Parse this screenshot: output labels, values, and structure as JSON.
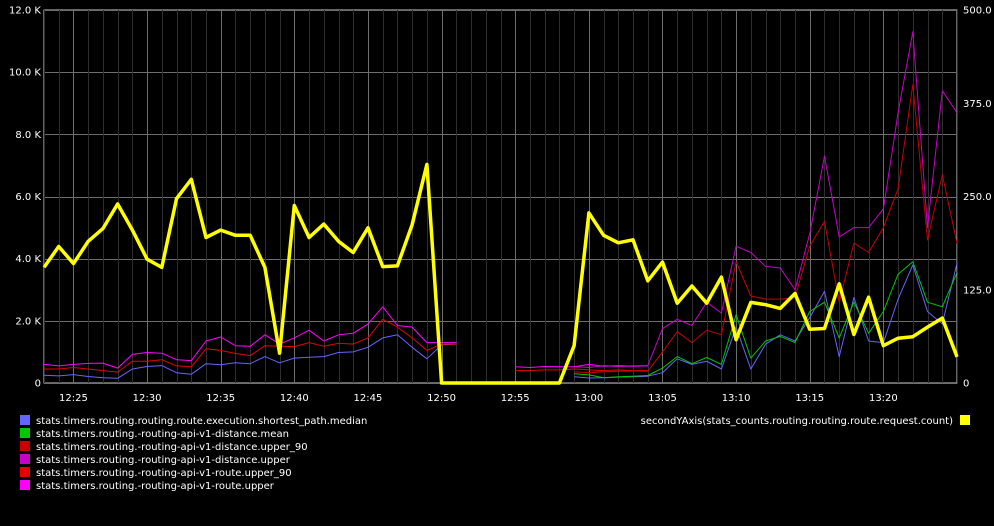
{
  "chart_data": {
    "type": "line",
    "title": "",
    "xlabel": "",
    "ylabel": "",
    "x_ticks": [
      "12:25",
      "12:30",
      "12:35",
      "12:40",
      "12:45",
      "12:50",
      "12:55",
      "13:00",
      "13:05",
      "13:10",
      "13:15",
      "13:20"
    ],
    "x_tick_minutes": [
      2,
      7,
      12,
      17,
      22,
      27,
      32,
      37,
      42,
      47,
      52,
      57
    ],
    "x_range_minutes": [
      0,
      62
    ],
    "y_left": {
      "ticks": [
        "0",
        "2.0 K",
        "4.0 K",
        "6.0 K",
        "8.0 K",
        "10.0 K",
        "12.0 K"
      ],
      "tick_values": [
        0,
        2000,
        4000,
        6000,
        8000,
        10000,
        12000
      ],
      "range": [
        0,
        12000
      ]
    },
    "y_right": {
      "ticks": [
        "0",
        "125.0",
        "250.0",
        "375.0",
        "500.0"
      ],
      "tick_values": [
        0,
        125,
        250,
        375,
        500
      ],
      "range": [
        0,
        500
      ]
    },
    "grid": true,
    "legend_placement": "bottom",
    "series": [
      {
        "name": "stats.timers.routing.routing.route.execution.shortest_path.median",
        "color": "#6464ff",
        "axis": "left",
        "width": 1,
        "points": [
          [
            0,
            250
          ],
          [
            1,
            230
          ],
          [
            2,
            270
          ],
          [
            3,
            210
          ],
          [
            4,
            170
          ],
          [
            5,
            150
          ],
          [
            6,
            450
          ],
          [
            7,
            530
          ],
          [
            8,
            560
          ],
          [
            9,
            330
          ],
          [
            10,
            280
          ],
          [
            11,
            620
          ],
          [
            12,
            590
          ],
          [
            13,
            650
          ],
          [
            14,
            620
          ],
          [
            15,
            850
          ],
          [
            16,
            650
          ],
          [
            17,
            800
          ],
          [
            18,
            830
          ],
          [
            19,
            850
          ],
          [
            20,
            980
          ],
          [
            21,
            1000
          ],
          [
            22,
            1150
          ],
          [
            23,
            1450
          ],
          [
            24,
            1550
          ],
          [
            25,
            1150
          ],
          [
            26,
            780
          ],
          [
            27,
            1230
          ],
          [
            28,
            1250
          ],
          [
            36,
            200
          ],
          [
            37,
            160
          ],
          [
            38,
            170
          ],
          [
            39,
            190
          ],
          [
            40,
            200
          ],
          [
            41,
            220
          ],
          [
            42,
            330
          ],
          [
            43,
            780
          ],
          [
            44,
            600
          ],
          [
            45,
            700
          ],
          [
            46,
            450
          ],
          [
            47,
            1800
          ],
          [
            48,
            450
          ],
          [
            49,
            1250
          ],
          [
            50,
            1550
          ],
          [
            51,
            1350
          ],
          [
            52,
            2100
          ],
          [
            53,
            2950
          ],
          [
            54,
            850
          ],
          [
            55,
            2750
          ],
          [
            56,
            1350
          ],
          [
            57,
            1300
          ],
          [
            58,
            2700
          ],
          [
            59,
            3800
          ],
          [
            60,
            2300
          ],
          [
            61,
            1900
          ],
          [
            62,
            3850
          ]
        ]
      },
      {
        "name": "stats.timers.routing.-routing-api-v1-distance.mean",
        "color": "#00c800",
        "axis": "left",
        "width": 1,
        "points": [
          [
            36,
            300
          ],
          [
            37,
            260
          ],
          [
            38,
            170
          ],
          [
            39,
            200
          ],
          [
            40,
            220
          ],
          [
            41,
            240
          ],
          [
            42,
            480
          ],
          [
            43,
            850
          ],
          [
            44,
            620
          ],
          [
            45,
            820
          ],
          [
            46,
            600
          ],
          [
            47,
            2200
          ],
          [
            48,
            800
          ],
          [
            49,
            1350
          ],
          [
            50,
            1500
          ],
          [
            51,
            1300
          ],
          [
            52,
            2300
          ],
          [
            53,
            2600
          ],
          [
            54,
            1450
          ],
          [
            55,
            2600
          ],
          [
            56,
            1600
          ],
          [
            57,
            2300
          ],
          [
            58,
            3500
          ],
          [
            59,
            3900
          ],
          [
            60,
            2600
          ],
          [
            61,
            2450
          ],
          [
            62,
            3550
          ]
        ]
      },
      {
        "name": "stats.timers.routing.-routing-api-v1-distance.upper_90",
        "color": "#c80000",
        "axis": "left",
        "width": 1,
        "points": [
          [
            36,
            360
          ],
          [
            37,
            330
          ],
          [
            38,
            360
          ],
          [
            39,
            380
          ],
          [
            40,
            390
          ],
          [
            41,
            380
          ],
          [
            42,
            1000
          ],
          [
            43,
            1650
          ],
          [
            44,
            1300
          ],
          [
            45,
            1700
          ],
          [
            46,
            1550
          ],
          [
            47,
            3900
          ],
          [
            48,
            2800
          ],
          [
            49,
            2700
          ],
          [
            50,
            2700
          ],
          [
            51,
            2750
          ],
          [
            52,
            4400
          ],
          [
            53,
            5200
          ],
          [
            54,
            2600
          ],
          [
            55,
            4500
          ],
          [
            56,
            4200
          ],
          [
            57,
            5000
          ],
          [
            58,
            6250
          ],
          [
            59,
            9600
          ],
          [
            60,
            4600
          ],
          [
            61,
            6700
          ],
          [
            62,
            4500
          ]
        ]
      },
      {
        "name": "stats.timers.routing.-routing-api-v1-distance.upper",
        "color": "#c800c8",
        "axis": "left",
        "width": 1,
        "points": [
          [
            36,
            530
          ],
          [
            37,
            500
          ],
          [
            38,
            560
          ],
          [
            39,
            530
          ],
          [
            40,
            550
          ],
          [
            41,
            560
          ],
          [
            42,
            1750
          ],
          [
            43,
            2050
          ],
          [
            44,
            1850
          ],
          [
            45,
            2600
          ],
          [
            46,
            2250
          ],
          [
            47,
            4400
          ],
          [
            48,
            4200
          ],
          [
            49,
            3750
          ],
          [
            50,
            3700
          ],
          [
            51,
            3000
          ],
          [
            52,
            4800
          ],
          [
            53,
            7300
          ],
          [
            54,
            4700
          ],
          [
            55,
            5000
          ],
          [
            56,
            5000
          ],
          [
            57,
            5600
          ],
          [
            58,
            8700
          ],
          [
            59,
            11300
          ],
          [
            60,
            5000
          ],
          [
            61,
            9400
          ],
          [
            62,
            8700
          ]
        ]
      },
      {
        "name": "stats.timers.routing.-routing-api-v1-route.upper_90",
        "color": "#e60000",
        "axis": "left",
        "width": 1,
        "points": [
          [
            0,
            450
          ],
          [
            1,
            450
          ],
          [
            2,
            500
          ],
          [
            3,
            450
          ],
          [
            4,
            400
          ],
          [
            5,
            350
          ],
          [
            6,
            700
          ],
          [
            7,
            700
          ],
          [
            8,
            750
          ],
          [
            9,
            550
          ],
          [
            10,
            520
          ],
          [
            11,
            1100
          ],
          [
            12,
            1050
          ],
          [
            13,
            950
          ],
          [
            14,
            880
          ],
          [
            15,
            1200
          ],
          [
            16,
            1180
          ],
          [
            17,
            1170
          ],
          [
            18,
            1300
          ],
          [
            19,
            1180
          ],
          [
            20,
            1280
          ],
          [
            21,
            1250
          ],
          [
            22,
            1450
          ],
          [
            23,
            2050
          ],
          [
            24,
            1800
          ],
          [
            25,
            1450
          ],
          [
            26,
            1050
          ],
          [
            27,
            1250
          ],
          [
            28,
            1250
          ],
          [
            32,
            400
          ],
          [
            33,
            400
          ],
          [
            34,
            420
          ],
          [
            35,
            420
          ],
          [
            36,
            450
          ],
          [
            37,
            420
          ],
          [
            38,
            400
          ],
          [
            39,
            420
          ],
          [
            40,
            400
          ],
          [
            41,
            400
          ]
        ]
      },
      {
        "name": "stats.timers.routing.-routing-api-v1-route.upper",
        "color": "#ff00ff",
        "axis": "left",
        "width": 1,
        "points": [
          [
            0,
            600
          ],
          [
            1,
            550
          ],
          [
            2,
            600
          ],
          [
            3,
            630
          ],
          [
            4,
            640
          ],
          [
            5,
            480
          ],
          [
            6,
            920
          ],
          [
            7,
            980
          ],
          [
            8,
            960
          ],
          [
            9,
            750
          ],
          [
            10,
            720
          ],
          [
            11,
            1350
          ],
          [
            12,
            1480
          ],
          [
            13,
            1200
          ],
          [
            14,
            1180
          ],
          [
            15,
            1550
          ],
          [
            16,
            1250
          ],
          [
            17,
            1450
          ],
          [
            18,
            1700
          ],
          [
            19,
            1350
          ],
          [
            20,
            1550
          ],
          [
            21,
            1600
          ],
          [
            22,
            1900
          ],
          [
            23,
            2450
          ],
          [
            24,
            1850
          ],
          [
            25,
            1800
          ],
          [
            26,
            1300
          ],
          [
            27,
            1300
          ],
          [
            28,
            1300
          ],
          [
            32,
            520
          ],
          [
            33,
            500
          ],
          [
            34,
            530
          ],
          [
            35,
            520
          ],
          [
            36,
            520
          ],
          [
            37,
            600
          ],
          [
            38,
            540
          ],
          [
            39,
            560
          ],
          [
            40,
            540
          ],
          [
            41,
            550
          ]
        ]
      },
      {
        "name": "secondYAxis(stats_counts.routing.routing.route.request.count)",
        "color": "#ffff00",
        "axis": "right",
        "width": 3.5,
        "points": [
          [
            0,
            155
          ],
          [
            1,
            183
          ],
          [
            2,
            160
          ],
          [
            3,
            190
          ],
          [
            4,
            207
          ],
          [
            5,
            240
          ],
          [
            6,
            205
          ],
          [
            7,
            166
          ],
          [
            8,
            155
          ],
          [
            9,
            247
          ],
          [
            10,
            273
          ],
          [
            11,
            195
          ],
          [
            12,
            205
          ],
          [
            13,
            198
          ],
          [
            14,
            198
          ],
          [
            15,
            155
          ],
          [
            16,
            40
          ],
          [
            17,
            238
          ],
          [
            18,
            195
          ],
          [
            19,
            213
          ],
          [
            20,
            190
          ],
          [
            21,
            175
          ],
          [
            22,
            208
          ],
          [
            23,
            156
          ],
          [
            24,
            157
          ],
          [
            25,
            212
          ],
          [
            26,
            293
          ],
          [
            27,
            0
          ],
          [
            28,
            0
          ],
          [
            29,
            0
          ],
          [
            30,
            0
          ],
          [
            31,
            0
          ],
          [
            32,
            0
          ],
          [
            33,
            0
          ],
          [
            34,
            0
          ],
          [
            35,
            0
          ],
          [
            36,
            50
          ],
          [
            37,
            228
          ],
          [
            38,
            198
          ],
          [
            39,
            188
          ],
          [
            40,
            192
          ],
          [
            41,
            137
          ],
          [
            42,
            162
          ],
          [
            43,
            107
          ],
          [
            44,
            130
          ],
          [
            45,
            107
          ],
          [
            46,
            142
          ],
          [
            47,
            58
          ],
          [
            48,
            108
          ],
          [
            49,
            105
          ],
          [
            50,
            100
          ],
          [
            51,
            120
          ],
          [
            52,
            72
          ],
          [
            53,
            73
          ],
          [
            54,
            133
          ],
          [
            55,
            65
          ],
          [
            56,
            115
          ],
          [
            57,
            50
          ],
          [
            58,
            60
          ],
          [
            59,
            62
          ],
          [
            60,
            75
          ],
          [
            61,
            87
          ],
          [
            62,
            35
          ]
        ]
      }
    ]
  }
}
